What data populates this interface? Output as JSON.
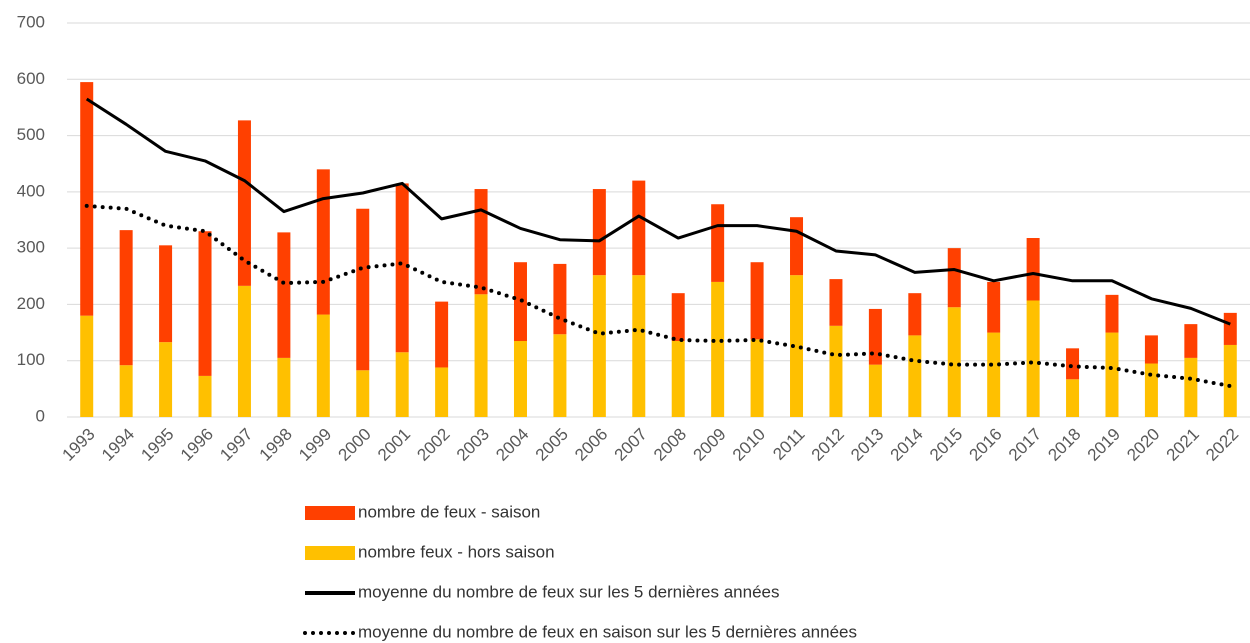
{
  "chart_data": {
    "type": "stacked_bar_line",
    "categories": [
      "1993",
      "1994",
      "1995",
      "1996",
      "1997",
      "1998",
      "1999",
      "2000",
      "2001",
      "2002",
      "2003",
      "2004",
      "2005",
      "2006",
      "2007",
      "2008",
      "2009",
      "2010",
      "2011",
      "2012",
      "2013",
      "2014",
      "2015",
      "2016",
      "2017",
      "2018",
      "2019",
      "2020",
      "2021",
      "2022"
    ],
    "series": [
      {
        "name": "nombre de feux - saison",
        "color": "#ff4000",
        "kind": "bar",
        "values": [
          415,
          240,
          172,
          257,
          294,
          223,
          258,
          287,
          300,
          117,
          187,
          140,
          125,
          153,
          168,
          85,
          138,
          137,
          103,
          83,
          99,
          75,
          105,
          90,
          111,
          55,
          67,
          50,
          60,
          57
        ]
      },
      {
        "name": "nombre feux - hors saison",
        "color": "#ffc000",
        "kind": "bar",
        "values": [
          180,
          92,
          133,
          73,
          233,
          105,
          182,
          83,
          115,
          88,
          218,
          135,
          147,
          252,
          252,
          135,
          240,
          138,
          252,
          162,
          93,
          145,
          195,
          150,
          207,
          67,
          150,
          95,
          105,
          128
        ]
      },
      {
        "name": "moyenne du nombre de feux sur les 5 dernières années",
        "color": "#000000",
        "kind": "line",
        "style": "solid",
        "values": [
          565,
          520,
          472,
          455,
          420,
          365,
          388,
          398,
          415,
          352,
          368,
          335,
          315,
          313,
          357,
          318,
          340,
          340,
          330,
          295,
          288,
          257,
          262,
          242,
          255,
          242,
          242,
          210,
          193,
          165
        ]
      },
      {
        "name": "moyenne du nombre de feux en saison sur les 5 dernières années",
        "color": "#000000",
        "kind": "line",
        "style": "dotted",
        "values": [
          375,
          370,
          340,
          330,
          278,
          238,
          240,
          265,
          273,
          240,
          230,
          208,
          175,
          148,
          155,
          137,
          135,
          137,
          125,
          110,
          113,
          100,
          93,
          93,
          97,
          90,
          87,
          75,
          68,
          55
        ]
      }
    ],
    "ylim": [
      0,
      700
    ],
    "yticks": [
      0,
      100,
      200,
      300,
      400,
      500,
      600,
      700
    ],
    "grid": true
  }
}
